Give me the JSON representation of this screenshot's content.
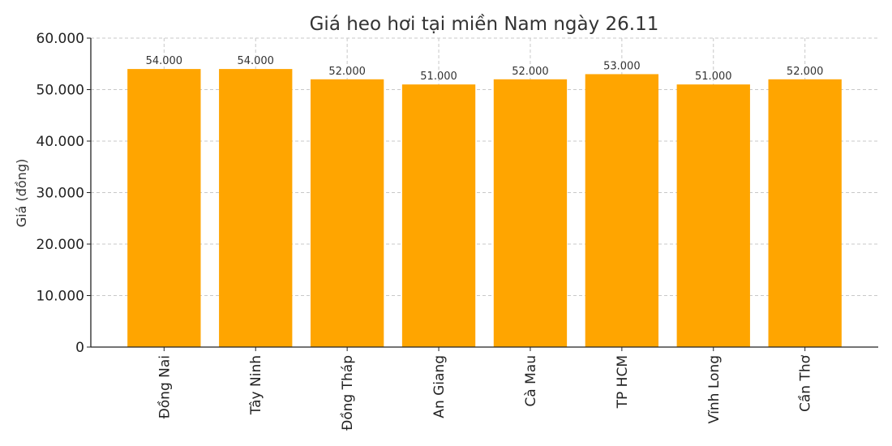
{
  "chart_data": {
    "type": "bar",
    "title": "Giá heo hơi tại miền Nam ngày 26.11",
    "xlabel": "",
    "ylabel": "Giá (đồng)",
    "categories": [
      "Đồng Nai",
      "Tây Ninh",
      "Đồng Tháp",
      "An Giang",
      "Cà Mau",
      "TP HCM",
      "Vĩnh Long",
      "Cần Thơ"
    ],
    "values": [
      54000,
      54000,
      52000,
      51000,
      52000,
      53000,
      51000,
      52000
    ],
    "value_labels": [
      "54.000",
      "54.000",
      "52.000",
      "51.000",
      "52.000",
      "53.000",
      "51.000",
      "52.000"
    ],
    "ylim": [
      0,
      60000
    ],
    "yticks": [
      0,
      10000,
      20000,
      30000,
      40000,
      50000,
      60000
    ],
    "ytick_labels": [
      "0",
      "10.000",
      "20.000",
      "30.000",
      "40.000",
      "50.000",
      "60.000"
    ],
    "grid": true,
    "bar_color": "#FFA500"
  }
}
